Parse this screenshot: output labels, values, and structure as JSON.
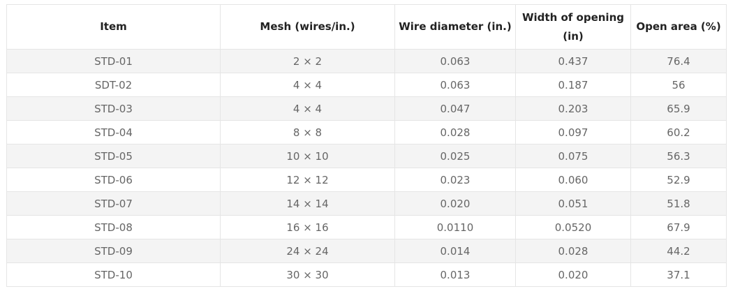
{
  "table": {
    "headers": [
      "Item",
      "Mesh (wires/in.)",
      "Wire diameter (in.)",
      "Width of opening (in)",
      "Open area (%)"
    ],
    "rows": [
      [
        "STD-01",
        "2 × 2",
        "0.063",
        "0.437",
        "76.4"
      ],
      [
        "SDT-02",
        "4 × 4",
        "0.063",
        "0.187",
        "56"
      ],
      [
        "STD-03",
        "4 × 4",
        "0.047",
        "0.203",
        "65.9"
      ],
      [
        "STD-04",
        "8 × 8",
        "0.028",
        "0.097",
        "60.2"
      ],
      [
        "STD-05",
        "10 × 10",
        "0.025",
        "0.075",
        "56.3"
      ],
      [
        "STD-06",
        "12 × 12",
        "0.023",
        "0.060",
        "52.9"
      ],
      [
        "STD-07",
        "14 × 14",
        "0.020",
        "0.051",
        "51.8"
      ],
      [
        "STD-08",
        "16 × 16",
        "0.0110",
        "0.0520",
        "67.9"
      ],
      [
        "STD-09",
        "24 × 24",
        "0.014",
        "0.028",
        "44.2"
      ],
      [
        "STD-10",
        "30 × 30",
        "0.013",
        "0.020",
        "37.1"
      ]
    ]
  }
}
